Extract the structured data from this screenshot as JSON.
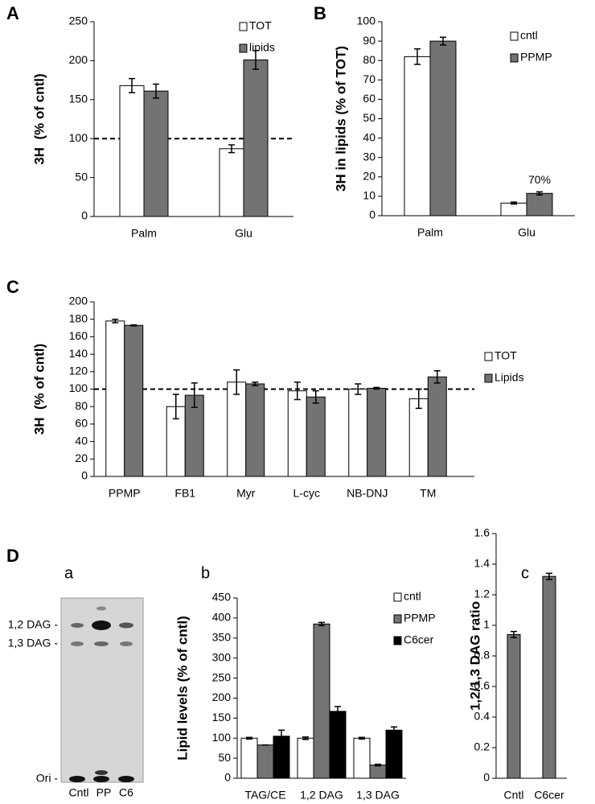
{
  "chart_data": [
    {
      "type": "bar",
      "panel": "A",
      "ylabel": "3H  (% of cntl)",
      "categories": [
        "Palm",
        "Glu"
      ],
      "series": [
        {
          "name": "TOT",
          "color": "#ffffff",
          "values": [
            168,
            87
          ],
          "errors": [
            9,
            5
          ]
        },
        {
          "name": "lipids",
          "color": "#737373",
          "values": [
            161,
            201
          ],
          "errors": [
            9,
            12
          ]
        }
      ],
      "ylim": [
        0,
        250
      ],
      "yticks": [
        0,
        50,
        100,
        150,
        200,
        250
      ],
      "reference_line": 100
    },
    {
      "type": "bar",
      "panel": "B",
      "ylabel": "3H in lipids (% of TOT)",
      "categories": [
        "Palm",
        "Glu"
      ],
      "series": [
        {
          "name": "cntl",
          "color": "#ffffff",
          "values": [
            82,
            6.5
          ],
          "errors": [
            4,
            0.5
          ]
        },
        {
          "name": "PPMP",
          "color": "#737373",
          "values": [
            90,
            11.5
          ],
          "errors": [
            2,
            0.8
          ]
        }
      ],
      "ylim": [
        0,
        100
      ],
      "yticks": [
        0,
        10,
        20,
        30,
        40,
        50,
        60,
        70,
        80,
        90,
        100
      ],
      "annotation": "70%"
    },
    {
      "type": "bar",
      "panel": "C",
      "ylabel": "3H  (% of cntl)",
      "categories": [
        "PPMP",
        "FB1",
        "Myr",
        "L-cyc",
        "NB-DNJ",
        "TM"
      ],
      "series": [
        {
          "name": "TOT",
          "color": "#ffffff",
          "values": [
            178,
            80,
            108,
            98,
            100,
            89
          ],
          "errors": [
            2,
            14,
            14,
            10,
            6,
            11
          ]
        },
        {
          "name": "Lipids",
          "color": "#737373",
          "values": [
            173,
            93,
            106,
            91,
            101,
            114
          ],
          "errors": [
            0.5,
            14,
            2,
            7,
            1,
            7
          ]
        }
      ],
      "ylim": [
        0,
        200
      ],
      "yticks": [
        0,
        20,
        40,
        60,
        80,
        100,
        120,
        140,
        160,
        180,
        200
      ],
      "reference_line": 100
    },
    {
      "type": "bar",
      "panel": "b",
      "ylabel": "Lipid levels (% of cntl)",
      "categories": [
        "TAG/CE",
        "1,2 DAG",
        "1,3 DAG"
      ],
      "series": [
        {
          "name": "cntl",
          "color": "#ffffff",
          "values": [
            100,
            100,
            100
          ],
          "errors": [
            2,
            3,
            2
          ]
        },
        {
          "name": "PPMP",
          "color": "#737373",
          "values": [
            83,
            385,
            33
          ],
          "errors": [
            0,
            4,
            2
          ]
        },
        {
          "name": "C6cer",
          "color": "#000000",
          "values": [
            105,
            167,
            120
          ],
          "errors": [
            15,
            12,
            8
          ]
        }
      ],
      "ylim": [
        0,
        450
      ],
      "yticks": [
        0,
        50,
        100,
        150,
        200,
        250,
        300,
        350,
        400,
        450
      ]
    },
    {
      "type": "bar",
      "panel": "c",
      "ylabel": "1,2/1,3 DAG ratio",
      "categories": [
        "Cntl",
        "C6cer"
      ],
      "series": [
        {
          "color": "#737373",
          "values": [
            0.94,
            1.32
          ],
          "errors": [
            0.02,
            0.02
          ]
        }
      ],
      "ylim": [
        0,
        1.6
      ],
      "yticks": [
        0,
        0.2,
        0.4,
        0.6,
        0.8,
        1,
        1.2,
        1.4,
        1.6
      ]
    }
  ],
  "gel": {
    "panel": "D",
    "sublabel": "a",
    "bands": [
      "1,2 DAG -",
      "1,3 DAG -",
      "Ori -"
    ],
    "lanes": [
      "Cntl",
      "PP",
      "C6"
    ]
  }
}
